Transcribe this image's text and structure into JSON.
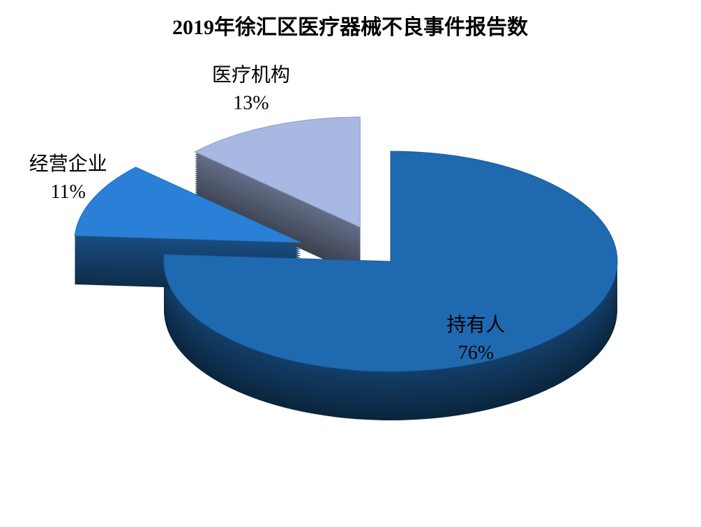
{
  "chart_data": {
    "type": "pie3d",
    "title": "2019年徐汇区医疗器械不良事件报告数",
    "categories": [
      "持有人",
      "经营企业",
      "医疗机构"
    ],
    "values": [
      76,
      11,
      13
    ],
    "value_labels": [
      "76%",
      "11%",
      "13%"
    ],
    "colors": [
      "#1f69b0",
      "#2a80d6",
      "#a7b9e2"
    ]
  }
}
